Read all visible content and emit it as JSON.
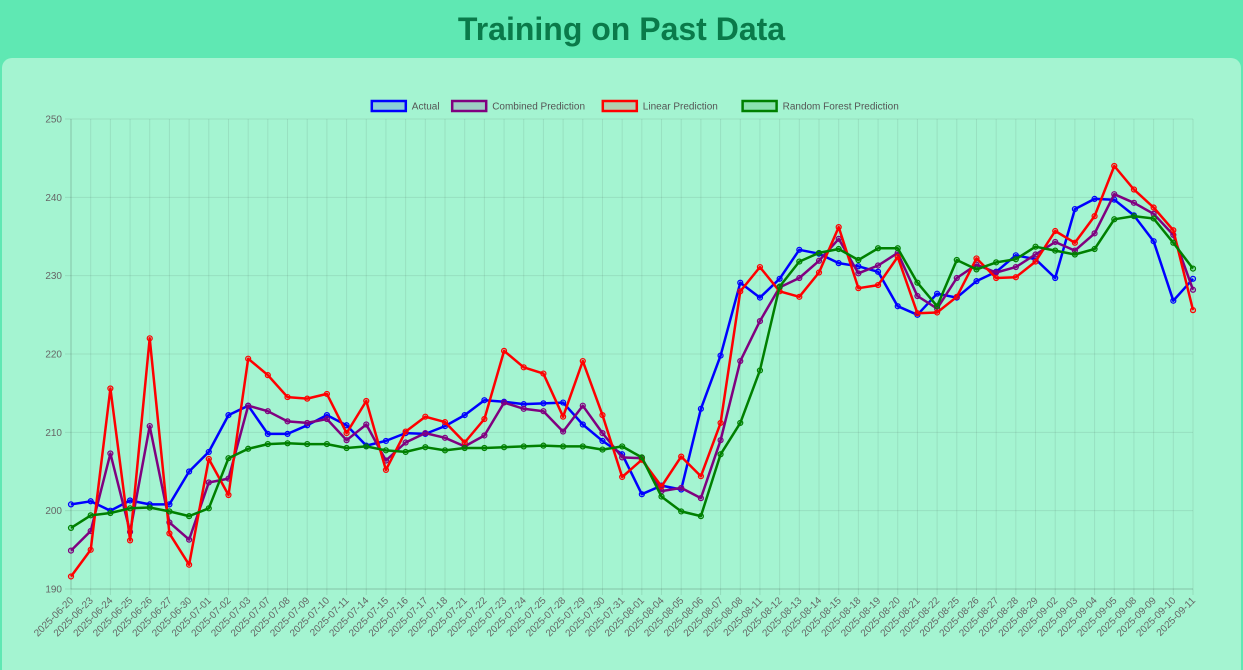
{
  "page": {
    "title": "Training on Past Data"
  },
  "chart_data": {
    "type": "line",
    "title": "",
    "xlabel": "",
    "ylabel": "",
    "ylim": [
      190,
      250
    ],
    "yticks": [
      190,
      200,
      210,
      220,
      230,
      240,
      250
    ],
    "legend_position": "top-center",
    "grid": true,
    "categories": [
      "2025-06-20",
      "2025-06-23",
      "2025-06-24",
      "2025-06-25",
      "2025-06-26",
      "2025-06-27",
      "2025-06-30",
      "2025-07-01",
      "2025-07-02",
      "2025-07-03",
      "2025-07-07",
      "2025-07-08",
      "2025-07-09",
      "2025-07-10",
      "2025-07-11",
      "2025-07-14",
      "2025-07-15",
      "2025-07-16",
      "2025-07-17",
      "2025-07-18",
      "2025-07-21",
      "2025-07-22",
      "2025-07-23",
      "2025-07-24",
      "2025-07-25",
      "2025-07-28",
      "2025-07-29",
      "2025-07-30",
      "2025-07-31",
      "2025-08-01",
      "2025-08-04",
      "2025-08-05",
      "2025-08-06",
      "2025-08-07",
      "2025-08-08",
      "2025-08-11",
      "2025-08-12",
      "2025-08-13",
      "2025-08-14",
      "2025-08-15",
      "2025-08-18",
      "2025-08-19",
      "2025-08-20",
      "2025-08-21",
      "2025-08-22",
      "2025-08-25",
      "2025-08-26",
      "2025-08-27",
      "2025-08-28",
      "2025-08-29",
      "2025-09-02",
      "2025-09-03",
      "2025-09-04",
      "2025-09-05",
      "2025-09-08",
      "2025-09-09",
      "2025-09-10",
      "2025-09-11"
    ],
    "series": [
      {
        "name": "Actual",
        "color": "#0000ff",
        "fill": "rgba(0,0,255,0.15)",
        "values": [
          200.8,
          201.2,
          200.0,
          201.3,
          200.8,
          200.8,
          205.0,
          207.5,
          212.2,
          213.4,
          209.8,
          209.8,
          210.9,
          212.2,
          210.9,
          208.3,
          208.9,
          209.9,
          209.8,
          210.8,
          212.2,
          214.1,
          213.9,
          213.6,
          213.7,
          213.8,
          211.0,
          208.9,
          207.2,
          202.1,
          203.2,
          202.7,
          213.0,
          219.8,
          229.1,
          227.2,
          229.6,
          233.3,
          232.8,
          231.6,
          231.2,
          230.5,
          226.1,
          225.0,
          227.7,
          227.2,
          229.3,
          230.5,
          232.6,
          232.1,
          229.7,
          238.5,
          239.8,
          239.7,
          237.7,
          234.4,
          226.8,
          229.6
        ]
      },
      {
        "name": "Combined Prediction",
        "color": "#800080",
        "fill": "rgba(128,0,128,0.15)",
        "values": [
          194.9,
          197.4,
          207.3,
          197.3,
          210.8,
          198.5,
          196.3,
          203.6,
          204.1,
          213.4,
          212.7,
          211.4,
          211.2,
          211.7,
          209.0,
          211.0,
          206.4,
          208.7,
          209.9,
          209.3,
          208.2,
          209.6,
          213.8,
          213.0,
          212.7,
          210.1,
          213.4,
          209.9,
          206.8,
          206.7,
          202.5,
          202.9,
          201.6,
          209.0,
          219.1,
          224.2,
          228.5,
          229.7,
          231.9,
          234.7,
          230.3,
          231.3,
          232.9,
          227.4,
          225.8,
          229.7,
          231.4,
          230.4,
          231.1,
          232.7,
          234.3,
          233.2,
          235.4,
          240.4,
          239.3,
          237.9,
          235.2,
          228.2
        ]
      },
      {
        "name": "Linear Prediction",
        "color": "#ff0000",
        "fill": "rgba(255,0,0,0.15)",
        "values": [
          191.6,
          195.0,
          215.6,
          196.2,
          222.0,
          197.1,
          193.1,
          206.6,
          202.0,
          219.4,
          217.3,
          214.5,
          214.3,
          214.9,
          209.9,
          214.0,
          205.2,
          210.1,
          212.0,
          211.3,
          208.7,
          211.7,
          220.4,
          218.3,
          217.5,
          212.0,
          219.1,
          212.2,
          204.3,
          206.5,
          203.1,
          206.9,
          204.4,
          211.2,
          228.0,
          231.1,
          228.0,
          227.3,
          230.4,
          236.2,
          228.4,
          228.8,
          232.4,
          225.2,
          225.3,
          227.3,
          232.2,
          229.7,
          229.8,
          231.8,
          235.7,
          234.2,
          237.6,
          244.0,
          241.0,
          238.7,
          235.8,
          225.6
        ]
      },
      {
        "name": "Random Forest Prediction",
        "color": "#008000",
        "fill": "rgba(0,128,0,0.15)",
        "values": [
          197.8,
          199.4,
          199.7,
          200.3,
          200.4,
          199.9,
          199.3,
          200.3,
          206.7,
          207.9,
          208.5,
          208.6,
          208.5,
          208.5,
          208.0,
          208.2,
          207.7,
          207.5,
          208.1,
          207.7,
          208.0,
          208.0,
          208.1,
          208.2,
          208.3,
          208.2,
          208.2,
          207.8,
          208.2,
          206.8,
          201.8,
          199.9,
          199.3,
          207.2,
          211.2,
          217.9,
          228.6,
          231.8,
          232.9,
          233.4,
          232.0,
          233.5,
          233.5,
          229.1,
          226.1,
          232.0,
          230.8,
          231.7,
          232.1,
          233.7,
          233.2,
          232.7,
          233.4,
          237.2,
          237.6,
          237.3,
          234.2,
          230.9
        ]
      }
    ]
  }
}
